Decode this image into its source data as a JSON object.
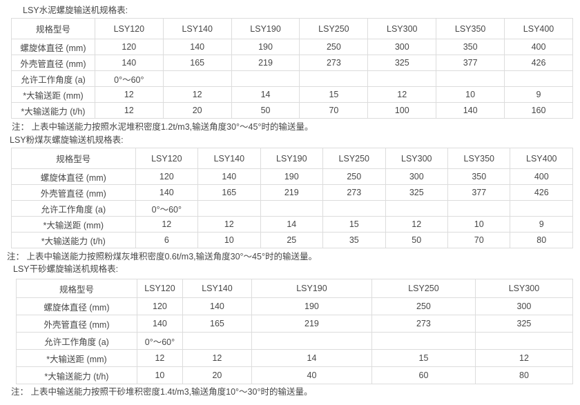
{
  "tables": [
    {
      "title": "LSY水泥螺旋输送机规格表:",
      "note": "注： 上表中输送能力按照水泥堆积密度1.2t/m3,输送角度30°～45°时的输送量。",
      "columns": [
        "规格型号",
        "LSY120",
        "LSY140",
        "LSY190",
        "LSY250",
        "LSY300",
        "LSY350",
        "LSY400"
      ],
      "rows": [
        {
          "label": "螺旋体直径 (mm)",
          "values": [
            "120",
            "140",
            "190",
            "250",
            "300",
            "350",
            "400"
          ]
        },
        {
          "label": "外壳管直径 (mm)",
          "values": [
            "140",
            "165",
            "219",
            "273",
            "325",
            "377",
            "426"
          ]
        },
        {
          "label": "允许工作角度 (a)",
          "values": [
            "0°～60°",
            "",
            "",
            "",
            "",
            "",
            ""
          ]
        },
        {
          "label": "*大输送距 (mm)",
          "values": [
            "12",
            "12",
            "14",
            "15",
            "12",
            "10",
            "9"
          ]
        },
        {
          "label": "*大输送能力 (t/h)",
          "values": [
            "12",
            "20",
            "50",
            "70",
            "100",
            "140",
            "160"
          ]
        }
      ]
    },
    {
      "title": "LSY粉煤灰螺旋输送机规格表:",
      "note": "注： 上表中输送能力按照粉煤灰堆积密度0.6t/m3,输送角度30°～45°时的输送量。",
      "columns": [
        "规格型号",
        "LSY120",
        "LSY140",
        "LSY190",
        "LSY250",
        "LSY300",
        "LSY350",
        "LSY400"
      ],
      "rows": [
        {
          "label": "螺旋体直径 (mm)",
          "values": [
            "120",
            "140",
            "190",
            "250",
            "300",
            "350",
            "400"
          ]
        },
        {
          "label": "外壳管直径 (mm)",
          "values": [
            "140",
            "165",
            "219",
            "273",
            "325",
            "377",
            "426"
          ]
        },
        {
          "label": "允许工作角度 (a)",
          "values": [
            "0°～60°",
            "",
            "",
            "",
            "",
            "",
            ""
          ]
        },
        {
          "label": "*大输送距 (mm)",
          "values": [
            "12",
            "12",
            "14",
            "15",
            "12",
            "10",
            "9"
          ]
        },
        {
          "label": "*大输送能力 (t/h)",
          "values": [
            "6",
            "10",
            "25",
            "35",
            "50",
            "70",
            "80"
          ]
        }
      ]
    },
    {
      "title": "LSY干砂螺旋输送机规格表:",
      "note": "注： 上表中输送能力按照干砂堆积密度1.4t/m3,输送角度10°～30°时的输送量。",
      "columns": [
        "规格型号",
        "LSY120",
        "LSY140",
        "LSY190",
        "LSY250",
        "LSY300"
      ],
      "rows": [
        {
          "label": "螺旋体直径 (mm)",
          "values": [
            "120",
            "140",
            "190",
            "250",
            "300"
          ]
        },
        {
          "label": "外壳管直径 (mm)",
          "values": [
            "140",
            "165",
            "219",
            "273",
            "325"
          ]
        },
        {
          "label": "允许工作角度 (a)",
          "values": [
            "0°～60°",
            "",
            "",
            "",
            ""
          ]
        },
        {
          "label": "*大输送距 (mm)",
          "values": [
            "12",
            "12",
            "14",
            "15",
            "12"
          ]
        },
        {
          "label": "*大输送能力 (t/h)",
          "values": [
            "10",
            "20",
            "40",
            "60",
            "80"
          ]
        }
      ]
    }
  ],
  "colors": {
    "text": "#474747",
    "border": "#dcdcdc",
    "background": "#ffffff"
  }
}
